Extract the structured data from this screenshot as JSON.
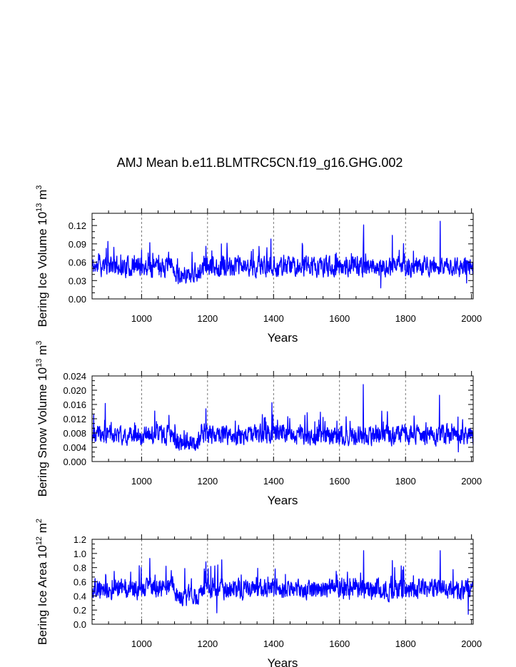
{
  "chart_data": {
    "title": "AMJ Mean b.e11.BLMTRC5CN.f19_g16.GHG.002",
    "series_color": "#0000ff",
    "panels": [
      {
        "type": "line",
        "ylabel": "Bering Ice Volume 10",
        "ylabel_exp1": "13",
        "ylabel_mid": " m",
        "ylabel_exp2": "3",
        "xlabel": "Years",
        "xlim": [
          850,
          2005
        ],
        "ylim": [
          0.0,
          0.14
        ],
        "yticks": [
          0.0,
          0.03,
          0.06,
          0.09,
          0.12
        ],
        "ytick_labels": [
          "0.00",
          "0.03",
          "0.06",
          "0.09",
          "0.12"
        ],
        "xticks": [
          1000,
          1200,
          1400,
          1600,
          1800,
          2000
        ],
        "xtick_labels": [
          "1000",
          "1200",
          "1400",
          "1600",
          "1800",
          "2000"
        ],
        "ygrid": false,
        "vgrid": [
          1000,
          1200,
          1400,
          1600,
          1800
        ],
        "base_level": 0.053,
        "noise_amp": 0.0135,
        "spikes": [
          [
            870,
            0.074
          ],
          [
            898,
            0.094
          ],
          [
            1000,
            0.08
          ],
          [
            1025,
            0.092
          ],
          [
            1195,
            0.086
          ],
          [
            1242,
            0.09
          ],
          [
            1392,
            0.098
          ],
          [
            1590,
            0.075
          ],
          [
            1673,
            0.121
          ],
          [
            1760,
            0.104
          ],
          [
            1905,
            0.127
          ],
          [
            1985,
            0.026
          ],
          [
            1725,
            0.018
          ]
        ],
        "low_years": [
          [
            1100,
            1180,
            -0.012
          ]
        ],
        "seed": 11
      },
      {
        "type": "line",
        "ylabel": "Bering Snow Volume 10",
        "ylabel_exp1": "13",
        "ylabel_mid": " m",
        "ylabel_exp2": "3",
        "xlabel": "Years",
        "xlim": [
          850,
          2005
        ],
        "ylim": [
          0.0,
          0.024
        ],
        "yticks": [
          0.0,
          0.004,
          0.008,
          0.012,
          0.016,
          0.02,
          0.024
        ],
        "ytick_labels": [
          "0.000",
          "0.004",
          "0.008",
          "0.012",
          "0.016",
          "0.020",
          "0.024"
        ],
        "xticks": [
          1000,
          1200,
          1400,
          1600,
          1800,
          2000
        ],
        "xtick_labels": [
          "1000",
          "1200",
          "1400",
          "1600",
          "1800",
          "2000"
        ],
        "vgrid": [
          1000,
          1200,
          1400,
          1600,
          1800
        ],
        "base_level": 0.0075,
        "noise_amp": 0.0022,
        "spikes": [
          [
            890,
            0.0163
          ],
          [
            1195,
            0.0148
          ],
          [
            1395,
            0.0165
          ],
          [
            1672,
            0.0216
          ],
          [
            1903,
            0.0186
          ],
          [
            1745,
            0.014
          ],
          [
            1960,
            0.0027
          ]
        ],
        "low_years": [
          [
            1100,
            1180,
            -0.002
          ]
        ],
        "seed": 23
      },
      {
        "type": "line",
        "ylabel": "Bering Ice Area 10",
        "ylabel_exp1": "12",
        "ylabel_mid": " m",
        "ylabel_exp2": "2",
        "xlabel": "Years",
        "xlim": [
          850,
          2005
        ],
        "ylim": [
          0.0,
          1.2
        ],
        "yticks": [
          0.0,
          0.2,
          0.4,
          0.6,
          0.8,
          1.0,
          1.2
        ],
        "ytick_labels": [
          "0.0",
          "0.2",
          "0.4",
          "0.6",
          "0.8",
          "1.0",
          "1.2"
        ],
        "xticks": [
          1000,
          1200,
          1400,
          1600,
          1800,
          2000
        ],
        "xtick_labels": [
          "1000",
          "1200",
          "1400",
          "1600",
          "1800",
          "2000"
        ],
        "vgrid": [
          1000,
          1200,
          1400,
          1600,
          1800
        ],
        "base_level": 0.5,
        "noise_amp": 0.12,
        "spikes": [
          [
            1025,
            0.93
          ],
          [
            1195,
            0.88
          ],
          [
            1243,
            0.91
          ],
          [
            1673,
            1.04
          ],
          [
            1760,
            0.9
          ],
          [
            1905,
            1.04
          ],
          [
            1228,
            0.16
          ],
          [
            1990,
            0.14
          ]
        ],
        "low_years": [
          [
            1100,
            1180,
            -0.1
          ]
        ],
        "seed": 37
      }
    ]
  }
}
